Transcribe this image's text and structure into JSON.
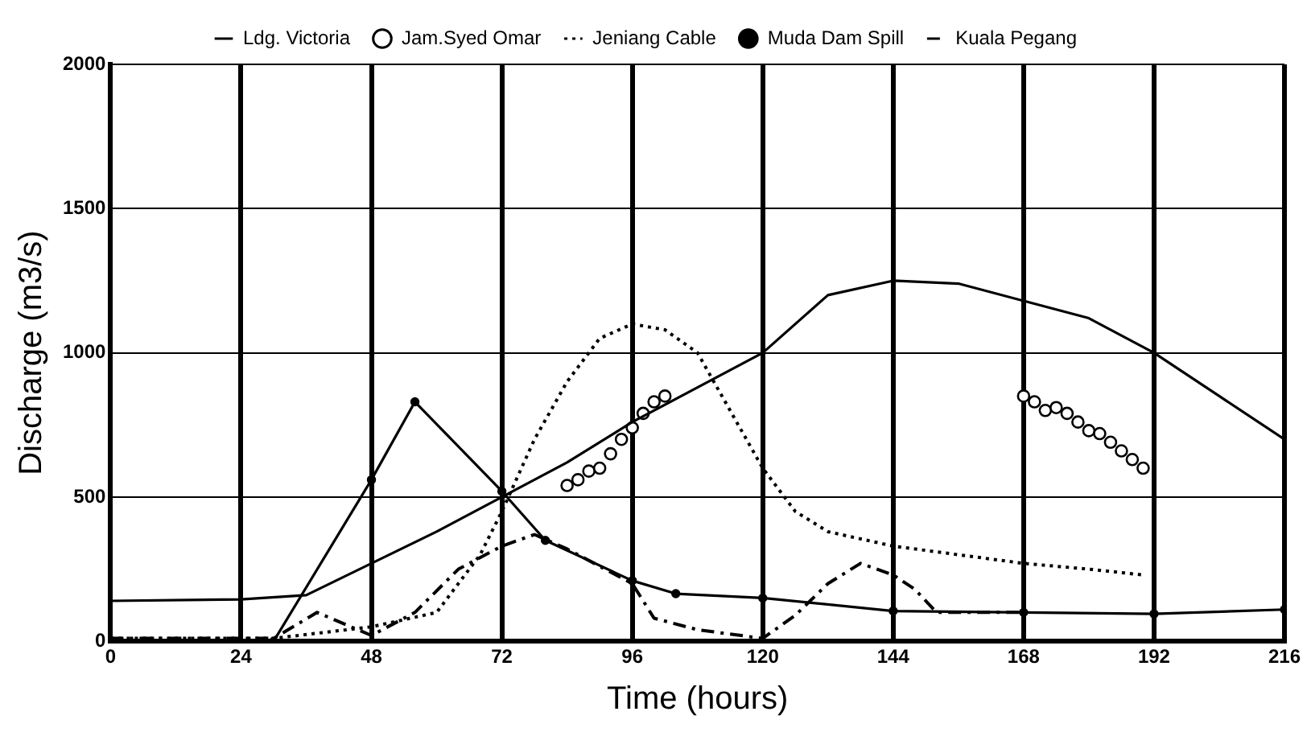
{
  "chart_data": {
    "type": "line",
    "xlabel": "Time (hours)",
    "ylabel": "Discharge (m3/s)",
    "xlim": [
      0,
      216
    ],
    "xticks": [
      0,
      24,
      48,
      72,
      96,
      120,
      144,
      168,
      192,
      216
    ],
    "ylim": [
      0,
      2000
    ],
    "yticks": [
      0,
      500,
      1000,
      1500,
      2000
    ],
    "grid": true,
    "legend": "top",
    "series": [
      {
        "name": "Ldg. Victoria",
        "color": "#000000",
        "line_style": "solid",
        "marker": "none",
        "x": [
          0,
          24,
          36,
          48,
          60,
          72,
          84,
          96,
          108,
          120,
          132,
          144,
          156,
          168,
          180,
          192,
          204,
          216
        ],
        "values": [
          140,
          145,
          160,
          270,
          380,
          500,
          620,
          760,
          880,
          1000,
          1200,
          1250,
          1240,
          1180,
          1120,
          1000,
          850,
          700
        ]
      },
      {
        "name": "Jam.Syed Omar",
        "type": "scatter",
        "color": "#000000",
        "marker": "circle",
        "x": [
          84,
          86,
          88,
          90,
          92,
          94,
          96,
          98,
          100,
          102,
          168,
          170,
          172,
          174,
          176,
          178,
          180,
          182,
          184,
          186,
          188,
          190
        ],
        "values": [
          540,
          560,
          590,
          600,
          650,
          700,
          740,
          790,
          830,
          850,
          850,
          830,
          800,
          810,
          790,
          760,
          730,
          720,
          690,
          660,
          630,
          600
        ]
      },
      {
        "name": "Jeniang Cable",
        "color": "#000000",
        "line_style": "dotted",
        "marker": "none",
        "x": [
          0,
          30,
          48,
          60,
          68,
          72,
          78,
          84,
          90,
          96,
          102,
          108,
          114,
          120,
          126,
          132,
          144,
          156,
          168,
          180,
          190
        ],
        "values": [
          10,
          10,
          50,
          100,
          300,
          450,
          700,
          900,
          1050,
          1100,
          1080,
          1000,
          800,
          600,
          450,
          380,
          330,
          300,
          270,
          250,
          230
        ]
      },
      {
        "name": "Muda Dam Spill",
        "color": "#000000",
        "line_style": "solid",
        "marker": "circle",
        "x": [
          0,
          30,
          48,
          56,
          72,
          80,
          96,
          104,
          120,
          144,
          168,
          192,
          216
        ],
        "values": [
          0,
          0,
          560,
          830,
          520,
          350,
          210,
          165,
          150,
          105,
          100,
          95,
          110
        ]
      },
      {
        "name": "Kuala Pegang",
        "color": "#000000",
        "line_style": "dashed",
        "marker": "none",
        "x": [
          0,
          30,
          38,
          48,
          56,
          64,
          72,
          78,
          84,
          96,
          100,
          108,
          120,
          126,
          132,
          138,
          144,
          148,
          152,
          168
        ],
        "values": [
          10,
          10,
          100,
          20,
          100,
          250,
          330,
          370,
          320,
          200,
          80,
          40,
          10,
          90,
          200,
          270,
          230,
          180,
          100,
          100
        ]
      }
    ]
  }
}
